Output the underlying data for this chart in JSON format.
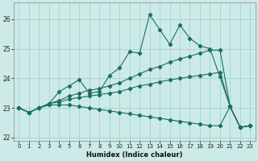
{
  "xlabel": "Humidex (Indice chaleur)",
  "xlim": [
    -0.5,
    23.5
  ],
  "ylim": [
    21.9,
    26.55
  ],
  "yticks": [
    22,
    23,
    24,
    25,
    26
  ],
  "xticks": [
    0,
    1,
    2,
    3,
    4,
    5,
    6,
    7,
    8,
    9,
    10,
    11,
    12,
    13,
    14,
    15,
    16,
    17,
    18,
    19,
    20,
    21,
    22,
    23
  ],
  "bg_color": "#cceae7",
  "line_color": "#1a6e64",
  "grid_color": "#aad6d0",
  "lines": [
    [
      23.0,
      22.85,
      23.0,
      23.15,
      23.55,
      23.75,
      23.95,
      23.5,
      23.55,
      24.1,
      24.35,
      24.9,
      24.85,
      26.15,
      25.65,
      25.15,
      25.8,
      25.35,
      25.1,
      25.0,
      24.05,
      23.05,
      22.35,
      22.4
    ],
    [
      23.0,
      22.85,
      23.0,
      23.15,
      23.25,
      23.4,
      23.5,
      23.6,
      23.65,
      23.75,
      23.85,
      24.0,
      24.15,
      24.3,
      24.4,
      24.55,
      24.65,
      24.75,
      24.85,
      24.95,
      24.95,
      23.05,
      22.35,
      22.4
    ],
    [
      23.0,
      22.85,
      23.0,
      23.15,
      23.2,
      23.3,
      23.35,
      23.4,
      23.45,
      23.5,
      23.55,
      23.65,
      23.75,
      23.8,
      23.88,
      23.95,
      24.0,
      24.05,
      24.1,
      24.15,
      24.2,
      23.05,
      22.35,
      22.4
    ],
    [
      23.0,
      22.85,
      23.0,
      23.1,
      23.1,
      23.1,
      23.05,
      23.0,
      22.95,
      22.9,
      22.85,
      22.8,
      22.75,
      22.7,
      22.65,
      22.6,
      22.55,
      22.5,
      22.45,
      22.4,
      22.4,
      23.05,
      22.35,
      22.4
    ]
  ]
}
